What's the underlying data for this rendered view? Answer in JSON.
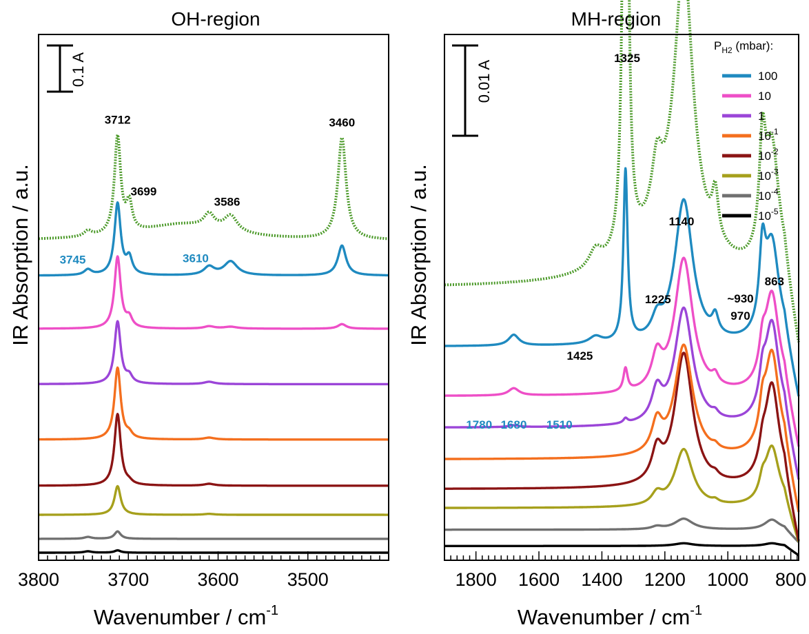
{
  "chart_data": [
    {
      "type": "line",
      "title": "OH-region",
      "xlabel": "Wavenumber / cm",
      "xlabel_sup": "-1",
      "ylabel": "IR Absorption / a.u.",
      "xlim": [
        3800,
        3410
      ],
      "x_reversed": true,
      "x_ticks": [
        3800,
        3700,
        3600,
        3500
      ],
      "y_ticks_shown": false,
      "scale_bar": {
        "label": "0.1 A",
        "value": 0.1
      },
      "peaks": {
        "main": 3712,
        "shoulder": 3699,
        "a3745": 3745,
        "a3610": 3610,
        "a3586": 3586,
        "a3460": 3460
      },
      "series": [
        {
          "key": "dotted",
          "style": "dotted",
          "color": "#4c9a2a",
          "offset": 0.675,
          "base": 0,
          "main": 0.21,
          "shoulder": 0.06,
          "p3745": 0.012,
          "p3610": 0.03,
          "p3586": 0.035,
          "p3460": 0.22
        },
        {
          "key": "p100",
          "color": "#1f8ac0",
          "offset": 0.6,
          "base": 0,
          "main": 0.155,
          "shoulder": 0.035,
          "p3745": 0.012,
          "p3610": 0.018,
          "p3586": 0.03,
          "p3460": 0.065
        },
        {
          "key": "p10",
          "color": "#ee4fc7",
          "offset": 0.485,
          "base": 0,
          "main": 0.155,
          "shoulder": 0.02,
          "p3745": 0,
          "p3610": 0.005,
          "p3586": 0.004,
          "p3460": 0.01
        },
        {
          "key": "p1",
          "color": "#9b45d8",
          "offset": 0.365,
          "base": 0,
          "main": 0.135,
          "shoulder": 0.015,
          "p3745": 0,
          "p3610": 0.005,
          "p3586": 0,
          "p3460": 0
        },
        {
          "key": "p0.1",
          "color": "#f46f1e",
          "offset": 0.245,
          "base": 0,
          "main": 0.155,
          "shoulder": 0.01,
          "p3745": 0,
          "p3610": 0.004,
          "p3586": 0,
          "p3460": 0
        },
        {
          "key": "p0.01",
          "color": "#8b1414",
          "offset": 0.145,
          "base": 0,
          "main": 0.155,
          "shoulder": 0.005,
          "p3745": 0,
          "p3610": 0.004,
          "p3586": 0,
          "p3460": 0
        },
        {
          "key": "p0.001",
          "color": "#a6a01c",
          "offset": 0.082,
          "base": 0,
          "main": 0.062,
          "shoulder": 0,
          "p3745": 0,
          "p3610": 0.002,
          "p3586": 0,
          "p3460": 0
        },
        {
          "key": "p0.0001",
          "color": "#707070",
          "offset": 0.03,
          "base": 0,
          "main": 0.016,
          "shoulder": 0,
          "p3745": 0.004,
          "p3610": 0,
          "p3586": 0,
          "p3460": 0
        },
        {
          "key": "p0.00001",
          "color": "#000000",
          "offset": 0,
          "base": 0,
          "main": 0.005,
          "shoulder": 0,
          "p3745": 0.003,
          "p3610": 0,
          "p3586": 0,
          "p3460": 0
        }
      ],
      "annotations": [
        {
          "text": "3712",
          "x": 3712,
          "color": "#000000",
          "ref": "dotted-top"
        },
        {
          "text": "3460",
          "x": 3462,
          "color": "#000000",
          "ref": "dotted-top"
        },
        {
          "text": "3699",
          "x": 3683,
          "color": "#000000",
          "ref": "shoulder"
        },
        {
          "text": "3586",
          "x": 3590,
          "color": "#000000",
          "ref": "mid"
        },
        {
          "text": "3745",
          "x": 3762,
          "color": "#1f8ac0",
          "ref": "blue"
        },
        {
          "text": "3610",
          "x": 3625,
          "color": "#1f8ac0",
          "ref": "blue"
        }
      ]
    },
    {
      "type": "line",
      "title": "MH-region",
      "xlabel": "Wavenumber / cm",
      "xlabel_sup": "-1",
      "xlim": [
        1900,
        775
      ],
      "x_reversed": true,
      "x_ticks": [
        1800,
        1600,
        1400,
        1200,
        1000,
        800
      ],
      "y_ticks_shown": false,
      "scale_bar": {
        "label": "0.01 A",
        "value": 0.01
      },
      "series": [
        {
          "key": "dotted",
          "style": "dotted",
          "color": "#4c9a2a",
          "offset": 0.0298,
          "p1325": 0.088,
          "p1140": 0.03,
          "p1225": 0.006,
          "p863": 0.014,
          "p890": 0.011,
          "p1040": 0.005,
          "p1425": 0.002,
          "p1680": 0
        },
        {
          "key": "p100",
          "color": "#1f8ac0",
          "offset": 0.0233,
          "p1325": 0.019,
          "p1140": 0.016,
          "p1225": 0.002,
          "p863": 0.011,
          "p890": 0.008,
          "p1040": 0.002,
          "p1425": 0.0008,
          "p1680": 0.0012
        },
        {
          "key": "p10",
          "color": "#ee4fc7",
          "offset": 0.0178,
          "p1325": 0.0025,
          "p1140": 0.015,
          "p1225": 0.0035,
          "p863": 0.011,
          "p890": 0.003,
          "p1040": 0.001,
          "p1425": 0,
          "p1680": 0.0008
        },
        {
          "key": "p1",
          "color": "#9b45d8",
          "offset": 0.0143,
          "p1325": 0.0005,
          "p1140": 0.013,
          "p1225": 0.0033,
          "p863": 0.0113,
          "p890": 0.003,
          "p1040": 0.0005,
          "p1425": 0,
          "p1680": 0.0002
        },
        {
          "key": "p0.1",
          "color": "#f46f1e",
          "offset": 0.0108,
          "p1325": 0,
          "p1140": 0.0124,
          "p1225": 0.0033,
          "p863": 0.0115,
          "p890": 0.003,
          "p1040": 0.0004,
          "p1425": 0,
          "p1680": 0
        },
        {
          "key": "p0.01",
          "color": "#8b1414",
          "offset": 0.0075,
          "p1325": 0,
          "p1140": 0.0148,
          "p1225": 0.0033,
          "p863": 0.0113,
          "p890": 0.002,
          "p1040": 0.0004,
          "p1425": 0,
          "p1680": 0
        },
        {
          "key": "p0.001",
          "color": "#a6a01c",
          "offset": 0.0054,
          "p1325": 0,
          "p1140": 0.0064,
          "p1225": 0.0012,
          "p863": 0.0066,
          "p890": 0.0015,
          "p1040": 0.0003,
          "p1425": 0,
          "p1680": 0
        },
        {
          "key": "p0.0001",
          "color": "#707070",
          "offset": 0.003,
          "p1325": 0,
          "p1140": 0.0012,
          "p1225": 0.0003,
          "p863": 0.0011,
          "p890": 0,
          "p1040": 0,
          "p1425": 0,
          "p1680": 0
        },
        {
          "key": "p0.00001",
          "color": "#000000",
          "offset": 0.0012,
          "p1325": 0,
          "p1140": 0.0003,
          "p1225": 0,
          "p863": 0.0003,
          "p890": 0,
          "p1040": 0,
          "p1425": 0,
          "p1680": 0
        }
      ],
      "annotations": [
        {
          "text": "1325",
          "x": 1320,
          "color": "#000000"
        },
        {
          "text": "1140",
          "x": 1147,
          "color": "#000000"
        },
        {
          "text": "1225",
          "x": 1222,
          "color": "#000000"
        },
        {
          "text": "1425",
          "x": 1470,
          "color": "#000000"
        },
        {
          "text": "~930",
          "x": 960,
          "color": "#000000"
        },
        {
          "text": "970",
          "x": 960,
          "color": "#000000"
        },
        {
          "text": "863",
          "x": 852,
          "color": "#000000"
        },
        {
          "text": "1780",
          "x": 1790,
          "color": "#1f8ac0"
        },
        {
          "text": "1680",
          "x": 1680,
          "color": "#1f8ac0"
        },
        {
          "text": "1510",
          "x": 1535,
          "color": "#1f8ac0"
        }
      ],
      "legend": {
        "title_main": "P",
        "title_sub": "H2",
        "title_tail": " (mbar):",
        "placement": "top-right",
        "entries": [
          {
            "key": "p100",
            "label": "100",
            "sup": "",
            "color": "#1f8ac0"
          },
          {
            "key": "p10",
            "label": "10",
            "sup": "",
            "color": "#ee4fc7"
          },
          {
            "key": "p1",
            "label": "1",
            "sup": "",
            "color": "#9b45d8"
          },
          {
            "key": "p0.1",
            "label": "10",
            "sup": "-1",
            "color": "#f46f1e"
          },
          {
            "key": "p0.01",
            "label": "10",
            "sup": "-2",
            "color": "#8b1414"
          },
          {
            "key": "p0.001",
            "label": "10",
            "sup": "-3",
            "color": "#a6a01c"
          },
          {
            "key": "p0.0001",
            "label": "10",
            "sup": "-4",
            "color": "#707070"
          },
          {
            "key": "p0.00001",
            "label": "10",
            "sup": "-5",
            "color": "#000000"
          }
        ]
      }
    }
  ]
}
